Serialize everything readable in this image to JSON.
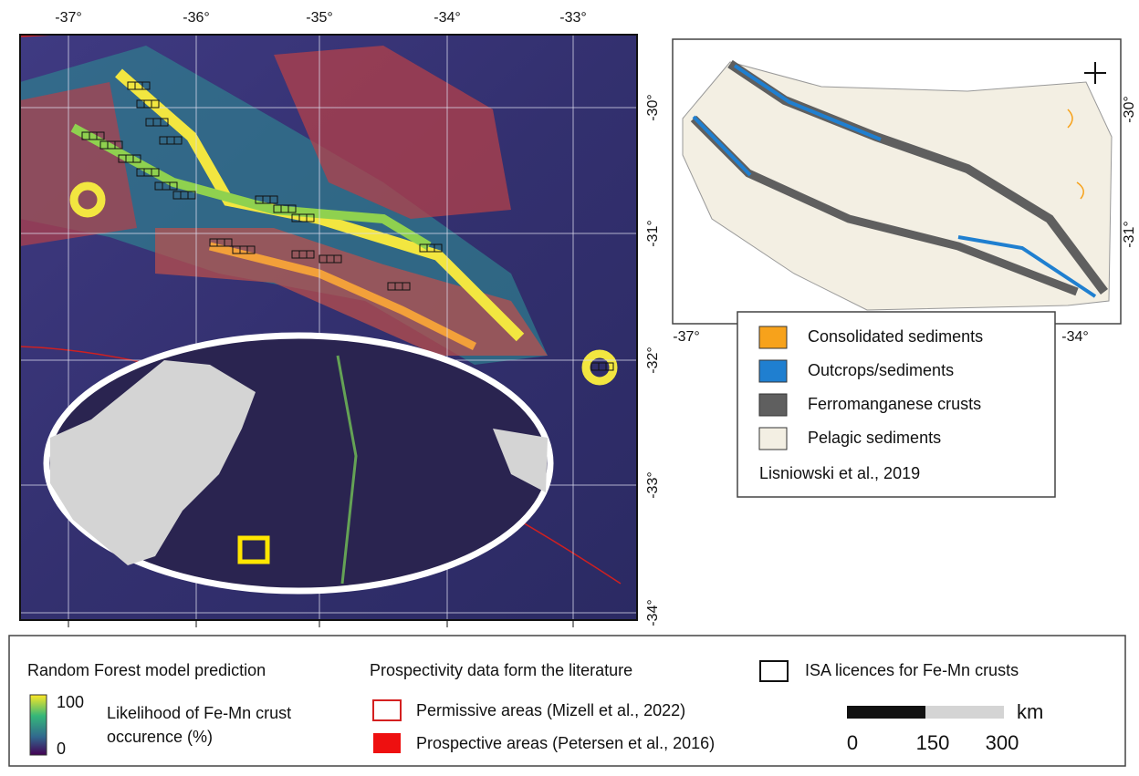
{
  "main_map": {
    "lon_labels": [
      "-37°",
      "-36°",
      "-35°",
      "-34°",
      "-33°"
    ],
    "lat_labels": [
      "-30°",
      "-31°",
      "-32°",
      "-33°",
      "-34°"
    ]
  },
  "inset_map": {
    "lat_labels": [
      "-30°",
      "-31°"
    ],
    "lon_labels": [
      "-37°",
      "-34°"
    ],
    "legend": [
      {
        "label": "Consolidated sediments",
        "color": "#f7a21b"
      },
      {
        "label": "Outcrops/sediments",
        "color": "#1f7fd0"
      },
      {
        "label": "Ferromanganese crusts",
        "color": "#5f5f5f"
      },
      {
        "label": "Pelagic sediments",
        "color": "#f3efe3"
      }
    ],
    "source": "Lisniowski et al., 2019"
  },
  "legend": {
    "model_title": "Random Forest model prediction",
    "colorbar_max": "100",
    "colorbar_min": "0",
    "colorbar_label": "Likelihood of Fe-Mn crust occurence (%)",
    "literature_title": "Prospectivity data form the literature",
    "permissive": "Permissive areas (Mizell et al., 2022)",
    "prospective": "Prospective areas (Petersen et al., 2016)",
    "isa": "ISA licences for Fe-Mn crusts",
    "scale_unit": "km",
    "scale_labels": [
      "0",
      "150",
      "300"
    ]
  }
}
